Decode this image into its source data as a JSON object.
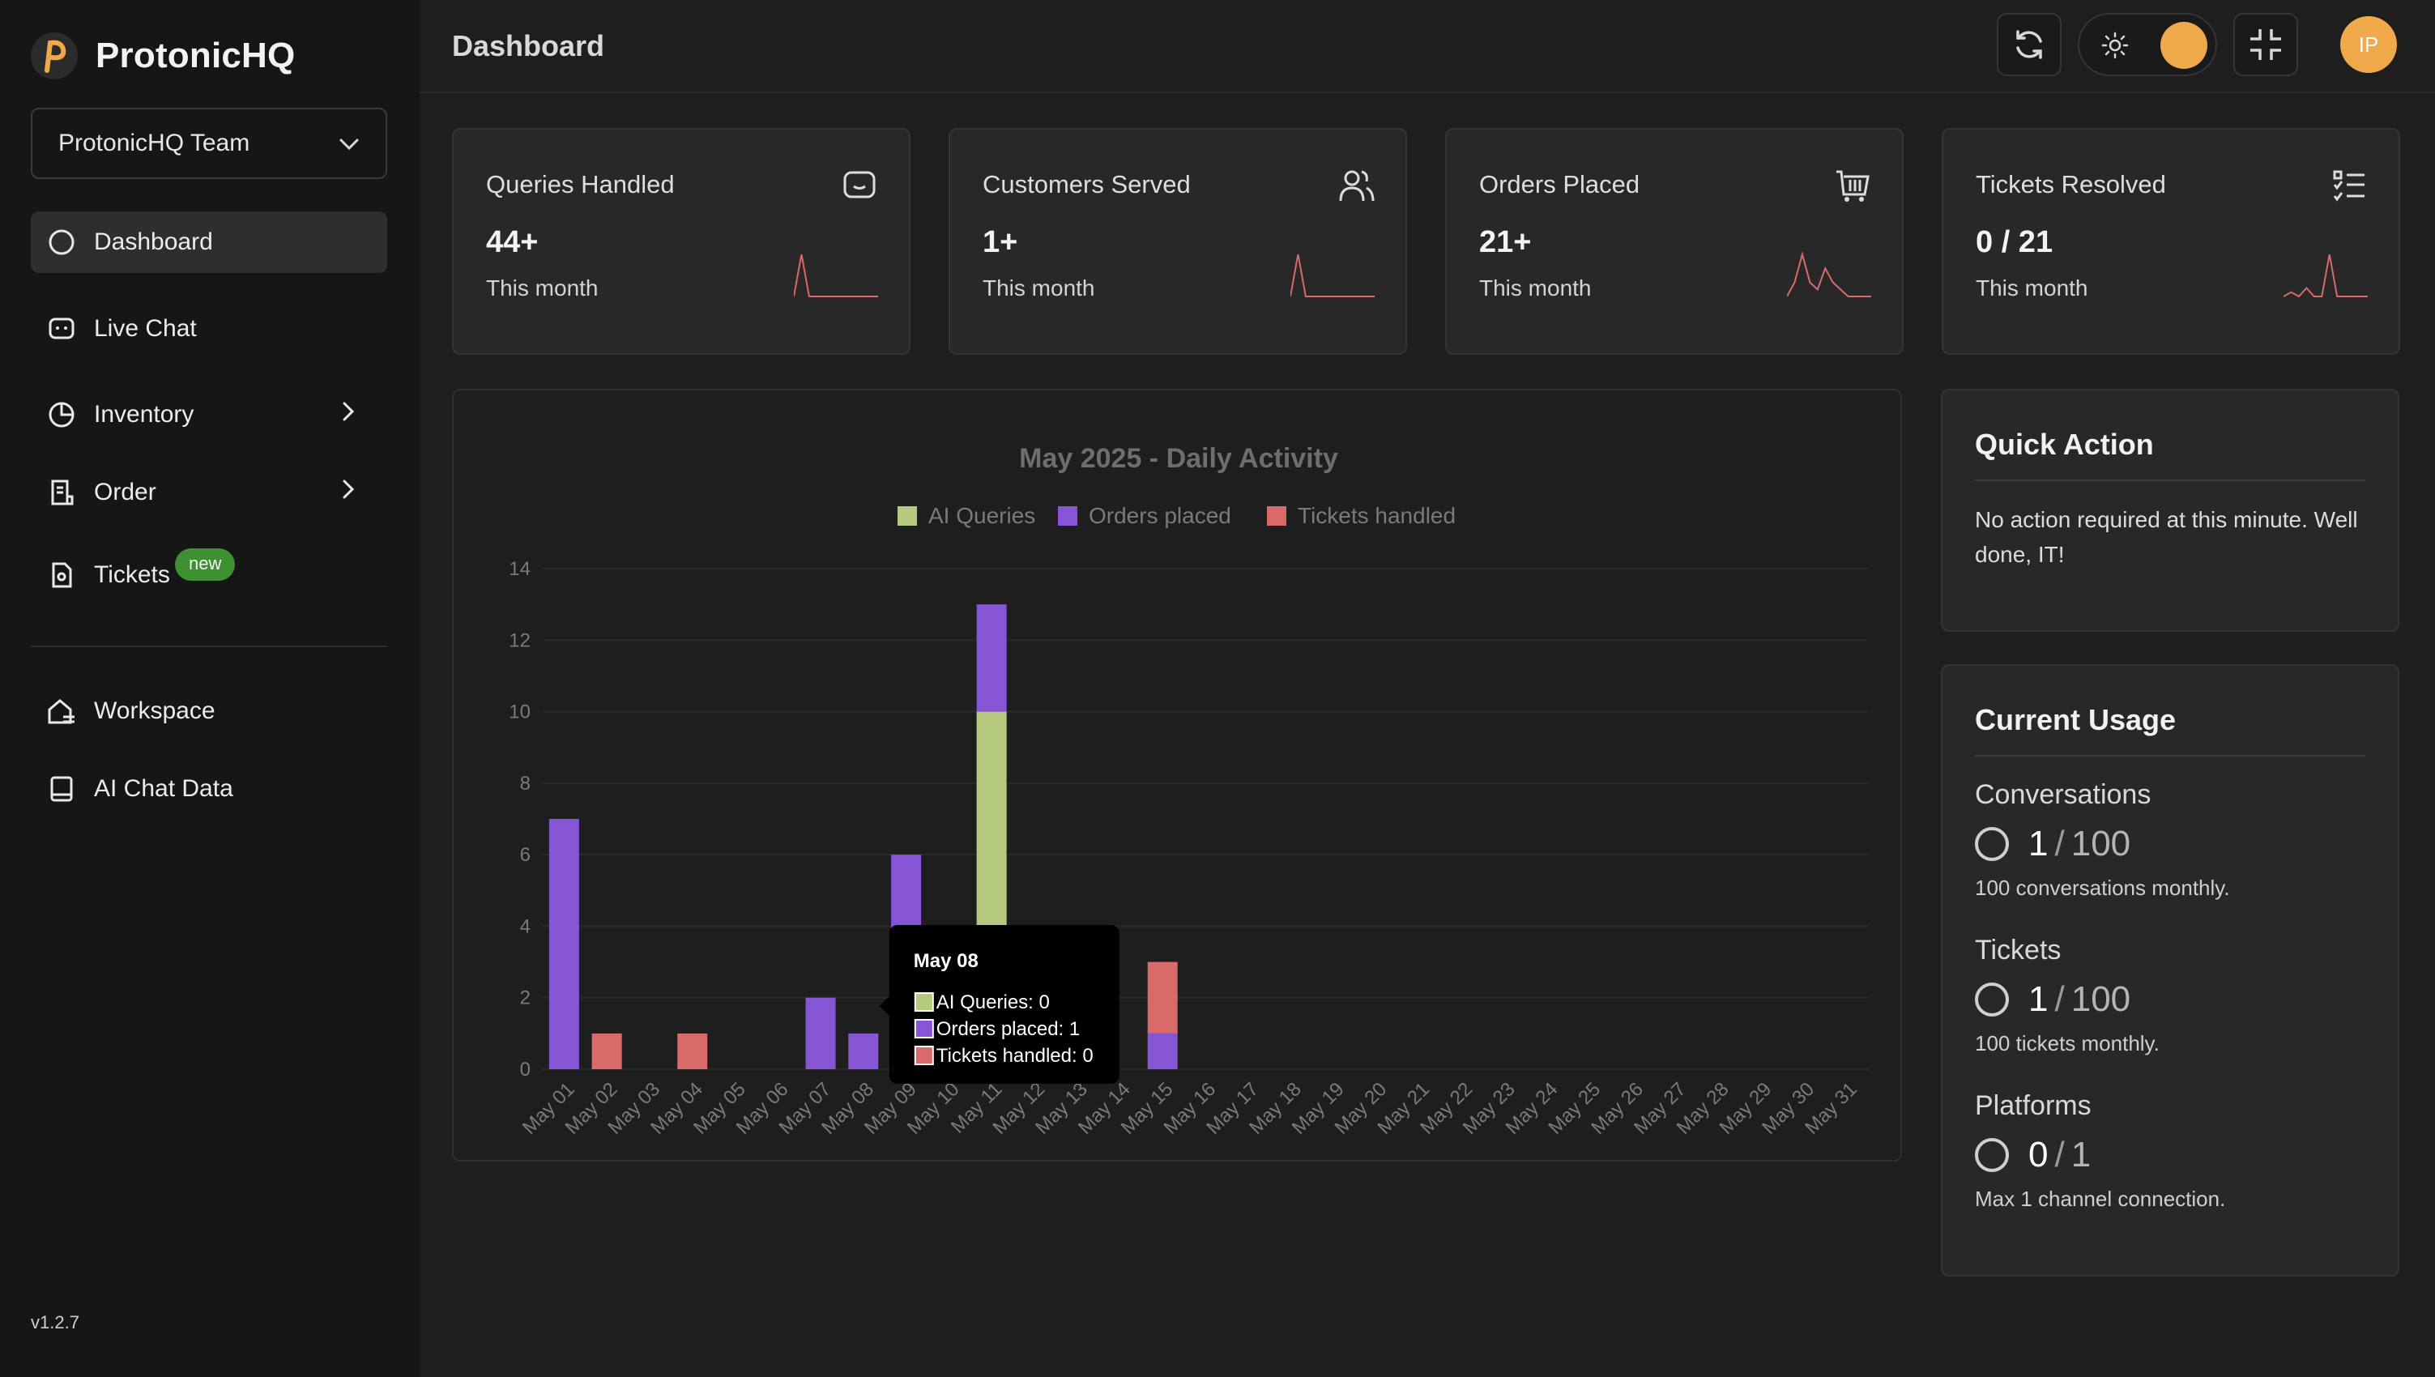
{
  "app": {
    "name": "ProtonicHQ",
    "version": "v1.2.7"
  },
  "sidebar": {
    "team": "ProtonicHQ Team",
    "items": [
      {
        "label": "Dashboard",
        "icon": "circle-icon",
        "active": true
      },
      {
        "label": "Live Chat",
        "icon": "chat-icon"
      },
      {
        "label": "Inventory",
        "icon": "pie-chart-icon",
        "submenu": true
      },
      {
        "label": "Order",
        "icon": "receipt-icon",
        "submenu": true
      },
      {
        "label": "Tickets",
        "icon": "ticket-icon",
        "badge": "new"
      },
      {
        "label": "Workspace",
        "icon": "workspace-icon"
      },
      {
        "label": "AI Chat Data",
        "icon": "book-icon"
      }
    ]
  },
  "header": {
    "title": "Dashboard",
    "avatar_initials": "IP"
  },
  "stats": [
    {
      "title": "Queries Handled",
      "value": "44+",
      "sub": "This month",
      "icon": "chat-bubble-icon"
    },
    {
      "title": "Customers Served",
      "value": "1+",
      "sub": "This month",
      "icon": "users-icon"
    },
    {
      "title": "Orders Placed",
      "value": "21+",
      "sub": "This month",
      "icon": "cart-icon"
    },
    {
      "title": "Tickets Resolved",
      "value": "0 / 21",
      "sub": "This month",
      "icon": "checklist-icon"
    }
  ],
  "quick_action": {
    "title": "Quick Action",
    "text": "No action required at this minute. Well done, IT!"
  },
  "usage": {
    "title": "Current Usage",
    "items": [
      {
        "label": "Conversations",
        "current": "1",
        "max": "100",
        "desc": "100 conversations monthly."
      },
      {
        "label": "Tickets",
        "current": "1",
        "max": "100",
        "desc": "100 tickets monthly."
      },
      {
        "label": "Platforms",
        "current": "0",
        "max": "1",
        "desc": "Max 1 channel connection."
      }
    ]
  },
  "colors": {
    "accent": "#f0a94a",
    "ai_queries": "#b5c97f",
    "orders_placed": "#8655d6",
    "tickets_handled": "#d96a6a",
    "badge_green": "#3f8f33"
  },
  "chart_data": {
    "type": "bar",
    "stacked": true,
    "title": "May 2025 - Daily Activity",
    "categories": [
      "May 01",
      "May 02",
      "May 03",
      "May 04",
      "May 05",
      "May 06",
      "May 07",
      "May 08",
      "May 09",
      "May 10",
      "May 11",
      "May 12",
      "May 13",
      "May 14",
      "May 15",
      "May 16",
      "May 17",
      "May 18",
      "May 19",
      "May 20",
      "May 21",
      "May 22",
      "May 23",
      "May 24",
      "May 25",
      "May 26",
      "May 27",
      "May 28",
      "May 29",
      "May 30",
      "May 31"
    ],
    "series": [
      {
        "name": "AI Queries",
        "color": "#b5c97f",
        "values": [
          0,
          0,
          0,
          0,
          0,
          0,
          0,
          0,
          0,
          0,
          10,
          0,
          0,
          0,
          0,
          0,
          0,
          0,
          0,
          0,
          0,
          0,
          0,
          0,
          0,
          0,
          0,
          0,
          0,
          0,
          0
        ]
      },
      {
        "name": "Orders placed",
        "color": "#8655d6",
        "values": [
          7,
          0,
          0,
          0,
          0,
          0,
          2,
          1,
          6,
          0,
          3,
          0,
          0,
          0,
          1,
          0,
          0,
          0,
          0,
          0,
          0,
          0,
          0,
          0,
          0,
          0,
          0,
          0,
          0,
          0,
          0
        ]
      },
      {
        "name": "Tickets handled",
        "color": "#d96a6a",
        "values": [
          0,
          1,
          0,
          1,
          0,
          0,
          0,
          0,
          0,
          0,
          0,
          0,
          0,
          0,
          2,
          0,
          0,
          0,
          0,
          0,
          0,
          0,
          0,
          0,
          0,
          0,
          0,
          0,
          0,
          0,
          0
        ]
      }
    ],
    "ylim": [
      0,
      14
    ],
    "yticks": [
      0,
      2,
      4,
      6,
      8,
      10,
      12,
      14
    ],
    "legend": "top",
    "tooltip": {
      "title": "May 08",
      "lines": [
        "AI Queries: 0",
        "Orders placed: 1",
        "Tickets handled: 0"
      ]
    }
  },
  "sparklines": [
    [
      0,
      12,
      0,
      0,
      0,
      0,
      0,
      0,
      0,
      0,
      0,
      0
    ],
    [
      0,
      6,
      0,
      0,
      0,
      0,
      0,
      0,
      0,
      0,
      0,
      0
    ],
    [
      0,
      1,
      3,
      1,
      0.5,
      2,
      1,
      0.5,
      0,
      0,
      0,
      0
    ],
    [
      0,
      0.5,
      0,
      1,
      0,
      0,
      5,
      0,
      0,
      0,
      0,
      0
    ]
  ]
}
